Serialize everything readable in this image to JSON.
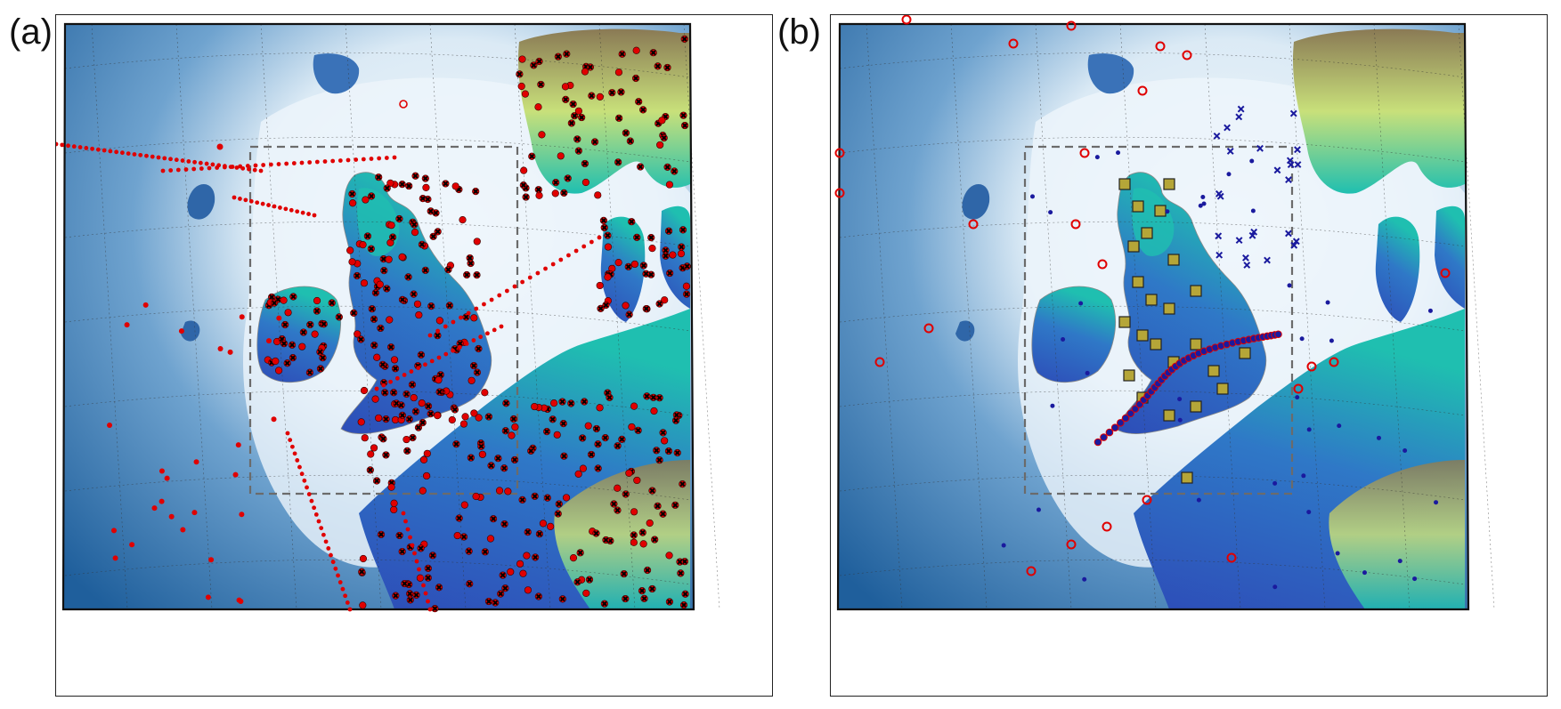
{
  "panels": [
    {
      "id": "a",
      "label": "(a)"
    },
    {
      "id": "b",
      "label": "(b)"
    }
  ],
  "colors": {
    "deep_ocean": "#1f5f9c",
    "shelf_ocean": "#dbeaf5",
    "low_land": "#2d4db8",
    "mid_land": "#1fbfb0",
    "high_land": "#c8e07a",
    "peak_land": "#8a7a55",
    "red_marker": "#e00000",
    "black_marker": "#000000",
    "blue_marker": "#1a1a9e",
    "olive_marker": "#b5a638",
    "dashed_box": "#6b6b6b"
  },
  "markers": {
    "panel_a": [
      "red-filled-circle",
      "black-cross"
    ],
    "panel_b": [
      "red-open-circle",
      "blue-filled-circle",
      "blue-cross",
      "olive-square"
    ]
  }
}
